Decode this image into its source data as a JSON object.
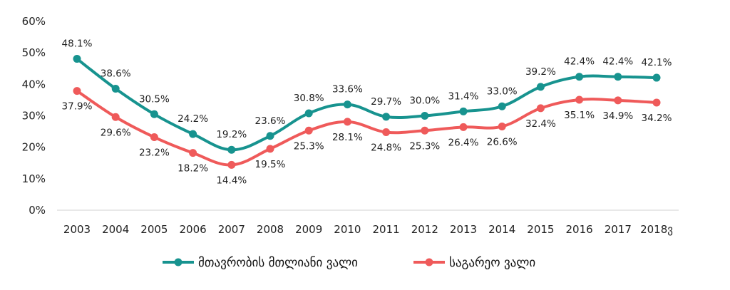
{
  "chart_data": {
    "type": "line",
    "title": "",
    "xlabel": "",
    "ylabel": "",
    "categories": [
      "2003",
      "2004",
      "2005",
      "2006",
      "2007",
      "2008",
      "2009",
      "2010",
      "2011",
      "2012",
      "2013",
      "2014",
      "2015",
      "2016",
      "2017",
      "2018ვ"
    ],
    "ylim": [
      0,
      60
    ],
    "yticks": [
      "0%",
      "10%",
      "20%",
      "30%",
      "40%",
      "50%",
      "60%"
    ],
    "grid": false,
    "legend_position": "bottom",
    "series": [
      {
        "name": "მთავრობის მთლიანი ვალი",
        "color": "#17938f",
        "values": [
          48.1,
          38.6,
          30.5,
          24.2,
          19.2,
          23.6,
          30.8,
          33.6,
          29.7,
          30.0,
          31.4,
          33.0,
          39.2,
          42.4,
          42.4,
          42.1
        ],
        "labels": [
          "48.1%",
          "38.6%",
          "30.5%",
          "24.2%",
          "19.2%",
          "23.6%",
          "30.8%",
          "33.6%",
          "29.7%",
          "30.0%",
          "31.4%",
          "33.0%",
          "39.2%",
          "42.4%",
          "42.4%",
          "42.1%"
        ]
      },
      {
        "name": "საგარეო ვალი",
        "color": "#ef5a5a",
        "values": [
          37.9,
          29.6,
          23.2,
          18.2,
          14.4,
          19.5,
          25.3,
          28.1,
          24.8,
          25.3,
          26.4,
          26.6,
          32.4,
          35.1,
          34.9,
          34.2
        ],
        "labels": [
          "37.9%",
          "29.6%",
          "23.2%",
          "18.2%",
          "14.4%",
          "19.5%",
          "25.3%",
          "28.1%",
          "24.8%",
          "25.3%",
          "26.4%",
          "26.6%",
          "32.4%",
          "35.1%",
          "34.9%",
          "34.2%"
        ]
      }
    ]
  }
}
